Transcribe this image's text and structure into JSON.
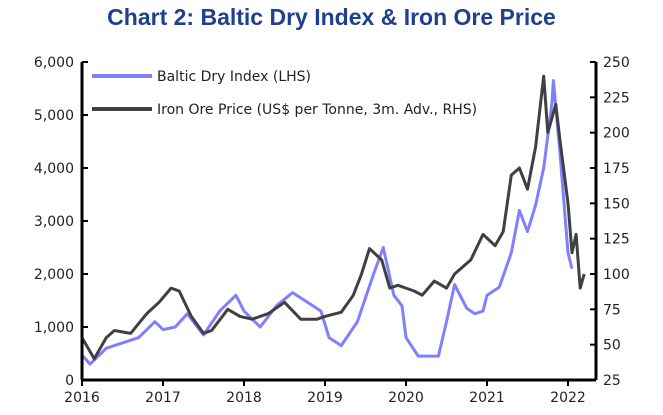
{
  "chart_data": {
    "type": "line",
    "title": "Chart 2: Baltic Dry Index & Iron Ore Price",
    "legend_position": "top-left",
    "grid": false,
    "x_ticks": [
      "2016",
      "2017",
      "2018",
      "2019",
      "2020",
      "2021",
      "2022"
    ],
    "xlim": [
      2016,
      2022.3
    ],
    "y_left": {
      "ylim": [
        0,
        6000
      ],
      "ticks": [
        "0",
        "1,000",
        "2,000",
        "3,000",
        "4,000",
        "5,000",
        "6,000"
      ]
    },
    "y_right": {
      "ylim": [
        25,
        250
      ],
      "ticks": [
        "25",
        "50",
        "75",
        "100",
        "125",
        "150",
        "175",
        "200",
        "225",
        "250"
      ]
    },
    "series": [
      {
        "name": "Baltic Dry Index (LHS)",
        "axis": "left",
        "color": "#8080ff",
        "x": [
          2016.0,
          2016.1,
          2016.3,
          2016.5,
          2016.7,
          2016.9,
          2017.0,
          2017.15,
          2017.3,
          2017.5,
          2017.7,
          2017.9,
          2018.0,
          2018.2,
          2018.4,
          2018.6,
          2018.75,
          2018.95,
          2019.05,
          2019.2,
          2019.4,
          2019.6,
          2019.72,
          2019.85,
          2019.95,
          2020.0,
          2020.15,
          2020.4,
          2020.5,
          2020.6,
          2020.75,
          2020.85,
          2020.95,
          2021.0,
          2021.15,
          2021.3,
          2021.4,
          2021.5,
          2021.6,
          2021.7,
          2021.8,
          2021.82,
          2021.9,
          2022.0,
          2022.05
        ],
        "y": [
          470,
          300,
          600,
          700,
          800,
          1100,
          950,
          1000,
          1250,
          850,
          1300,
          1600,
          1300,
          1000,
          1400,
          1650,
          1500,
          1300,
          800,
          650,
          1100,
          2000,
          2500,
          1600,
          1400,
          800,
          450,
          450,
          1100,
          1800,
          1350,
          1250,
          1300,
          1600,
          1750,
          2400,
          3200,
          2800,
          3300,
          4000,
          5200,
          5650,
          4300,
          2400,
          2100
        ]
      },
      {
        "name": "Iron Ore Price (US$ per Tonne, 3m. Adv., RHS)",
        "axis": "right",
        "color": "#404040",
        "x": [
          2016.0,
          2016.15,
          2016.3,
          2016.4,
          2016.6,
          2016.8,
          2016.95,
          2017.1,
          2017.2,
          2017.35,
          2017.5,
          2017.6,
          2017.8,
          2017.95,
          2018.1,
          2018.3,
          2018.5,
          2018.7,
          2018.9,
          2019.0,
          2019.2,
          2019.35,
          2019.45,
          2019.55,
          2019.7,
          2019.8,
          2019.9,
          2020.1,
          2020.2,
          2020.35,
          2020.5,
          2020.6,
          2020.8,
          2020.95,
          2021.1,
          2021.2,
          2021.3,
          2021.4,
          2021.5,
          2021.6,
          2021.7,
          2021.75,
          2021.85,
          2021.9,
          2022.0,
          2022.05,
          2022.1,
          2022.15,
          2022.2
        ],
        "y": [
          55,
          40,
          55,
          60,
          58,
          72,
          80,
          90,
          88,
          70,
          58,
          60,
          75,
          70,
          68,
          72,
          80,
          68,
          68,
          70,
          73,
          85,
          100,
          118,
          110,
          90,
          92,
          88,
          85,
          95,
          90,
          100,
          110,
          128,
          120,
          130,
          170,
          175,
          160,
          190,
          240,
          200,
          220,
          195,
          150,
          115,
          128,
          90,
          100
        ]
      }
    ]
  }
}
